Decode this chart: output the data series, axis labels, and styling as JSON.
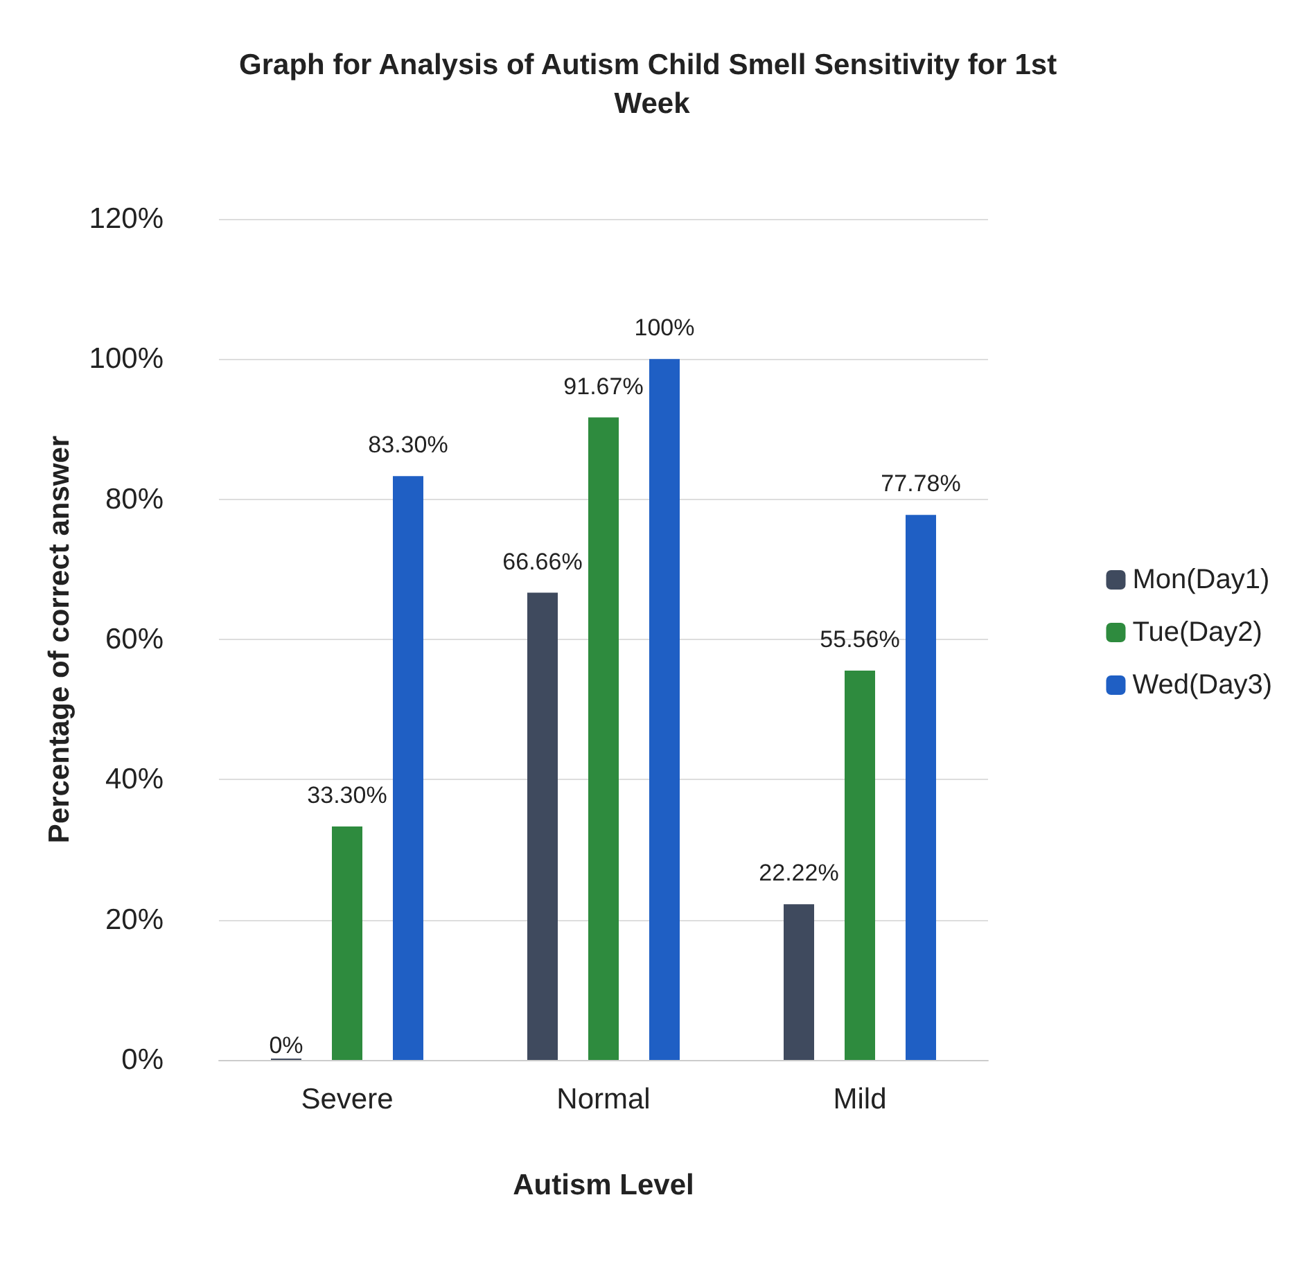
{
  "chart_data": {
    "type": "bar",
    "title": "Graph for Analysis of Autism Child Smell Sensitivity for 1st Week",
    "xlabel": "Autism Level",
    "ylabel": "Percentage of correct answer",
    "categories": [
      "Severe",
      "Normal",
      "Mild"
    ],
    "series": [
      {
        "name": "Mon(Day1)",
        "color": "#3f4a5e",
        "values": [
          0,
          66.66,
          22.22
        ],
        "value_labels": [
          "0%",
          "66.66%",
          "22.22%"
        ]
      },
      {
        "name": "Tue(Day2)",
        "color": "#2e8b3e",
        "values": [
          33.3,
          91.67,
          55.56
        ],
        "value_labels": [
          "33.30%",
          "91.67%",
          "55.56%"
        ]
      },
      {
        "name": "Wed(Day3)",
        "color": "#1f5fc4",
        "values": [
          83.3,
          100,
          77.78
        ],
        "value_labels": [
          "83.30%",
          "100%",
          "77.78%"
        ]
      }
    ],
    "ylim": [
      0,
      120
    ],
    "yticks": [
      {
        "value": 0,
        "label": "0%"
      },
      {
        "value": 20,
        "label": "20%"
      },
      {
        "value": 40,
        "label": "40%"
      },
      {
        "value": 60,
        "label": "60%"
      },
      {
        "value": 80,
        "label": "80%"
      },
      {
        "value": 100,
        "label": "100%"
      },
      {
        "value": 120,
        "label": "120%"
      }
    ],
    "grid": "y",
    "legend": "right"
  }
}
